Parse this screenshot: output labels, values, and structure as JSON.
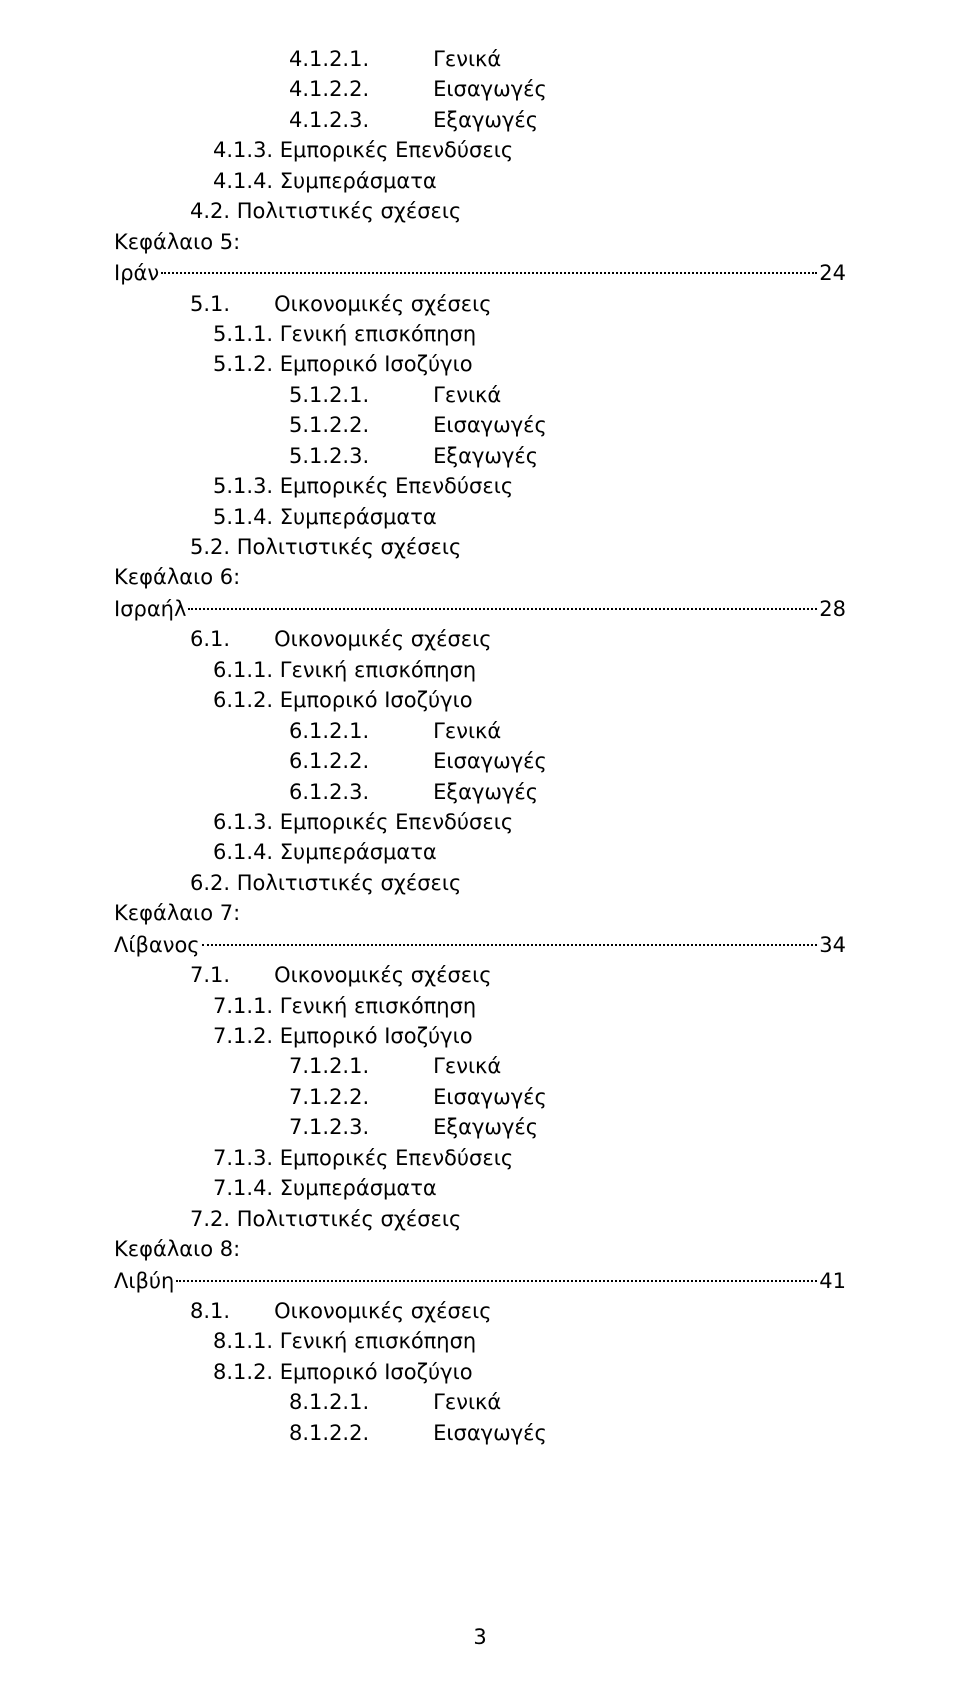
{
  "lines": [
    {
      "cls": "l3 row",
      "parts": [
        {
          "t": "4.1.2.1."
        },
        {
          "gap": "gap1"
        },
        {
          "t": "Γενικά"
        }
      ]
    },
    {
      "cls": "l3 row",
      "parts": [
        {
          "t": "4.1.2.2."
        },
        {
          "gap": "gap1"
        },
        {
          "t": "Εισαγωγές"
        }
      ]
    },
    {
      "cls": "l3 row",
      "parts": [
        {
          "t": "4.1.2.3."
        },
        {
          "gap": "gap1"
        },
        {
          "t": "Εξαγωγές"
        }
      ]
    },
    {
      "cls": "l2",
      "text": "4.1.3. Εμπορικές Επενδύσεις"
    },
    {
      "cls": "l2",
      "text": "4.1.4. Συμπεράσματα"
    },
    {
      "cls": "l1",
      "text": "4.2. Πολιτιστικές σχέσεις"
    },
    {
      "cls": "l0",
      "text": "Κεφάλαιο 5:"
    },
    {
      "cls": "l0 dotline",
      "lead": "Ιράν",
      "page": "24"
    },
    {
      "cls": "l1 row",
      "parts": [
        {
          "t": "5.1."
        },
        {
          "gap": "gap2"
        },
        {
          "t": "Οικονομικές σχέσεις"
        }
      ]
    },
    {
      "cls": "l2",
      "text": "5.1.1. Γενική επισκόπηση"
    },
    {
      "cls": "l2",
      "text": "5.1.2. Εμπορικό Ισοζύγιο"
    },
    {
      "cls": "l3 row",
      "parts": [
        {
          "t": "5.1.2.1."
        },
        {
          "gap": "gap1"
        },
        {
          "t": "Γενικά"
        }
      ]
    },
    {
      "cls": "l3 row",
      "parts": [
        {
          "t": "5.1.2.2."
        },
        {
          "gap": "gap1"
        },
        {
          "t": "Εισαγωγές"
        }
      ]
    },
    {
      "cls": "l3 row",
      "parts": [
        {
          "t": "5.1.2.3."
        },
        {
          "gap": "gap1"
        },
        {
          "t": "Εξαγωγές"
        }
      ]
    },
    {
      "cls": "l2",
      "text": "5.1.3. Εμπορικές Επενδύσεις"
    },
    {
      "cls": "l2",
      "text": "5.1.4. Συμπεράσματα"
    },
    {
      "cls": "l1",
      "text": "5.2. Πολιτιστικές σχέσεις"
    },
    {
      "cls": "l0",
      "text": "Κεφάλαιο 6:"
    },
    {
      "cls": "l0 dotline",
      "lead": "Ισραήλ",
      "page": "28"
    },
    {
      "cls": "l1 row",
      "parts": [
        {
          "t": "6.1."
        },
        {
          "gap": "gap2"
        },
        {
          "t": "Οικονομικές σχέσεις"
        }
      ]
    },
    {
      "cls": "l2",
      "text": "6.1.1. Γενική επισκόπηση"
    },
    {
      "cls": "l2",
      "text": "6.1.2. Εμπορικό Ισοζύγιο"
    },
    {
      "cls": "l3 row",
      "parts": [
        {
          "t": "6.1.2.1."
        },
        {
          "gap": "gap1"
        },
        {
          "t": "Γενικά"
        }
      ]
    },
    {
      "cls": "l3 row",
      "parts": [
        {
          "t": "6.1.2.2."
        },
        {
          "gap": "gap1"
        },
        {
          "t": "Εισαγωγές"
        }
      ]
    },
    {
      "cls": "l3 row",
      "parts": [
        {
          "t": "6.1.2.3."
        },
        {
          "gap": "gap1"
        },
        {
          "t": "Εξαγωγές"
        }
      ]
    },
    {
      "cls": "l2",
      "text": "6.1.3. Εμπορικές Επενδύσεις"
    },
    {
      "cls": "l2",
      "text": "6.1.4. Συμπεράσματα"
    },
    {
      "cls": "l1",
      "text": "6.2. Πολιτιστικές σχέσεις"
    },
    {
      "cls": "l0",
      "text": "Κεφάλαιο 7:"
    },
    {
      "cls": "l0 dotline",
      "lead": "Λίβανος",
      "page": "34"
    },
    {
      "cls": "l1 row",
      "parts": [
        {
          "t": "7.1."
        },
        {
          "gap": "gap2"
        },
        {
          "t": "Οικονομικές σχέσεις"
        }
      ]
    },
    {
      "cls": "l2",
      "text": "7.1.1. Γενική επισκόπηση"
    },
    {
      "cls": "l2",
      "text": "7.1.2. Εμπορικό Ισοζύγιο"
    },
    {
      "cls": "l3 row",
      "parts": [
        {
          "t": "7.1.2.1."
        },
        {
          "gap": "gap1"
        },
        {
          "t": "Γενικά"
        }
      ]
    },
    {
      "cls": "l3 row",
      "parts": [
        {
          "t": "7.1.2.2."
        },
        {
          "gap": "gap1"
        },
        {
          "t": "Εισαγωγές"
        }
      ]
    },
    {
      "cls": "l3 row",
      "parts": [
        {
          "t": "7.1.2.3."
        },
        {
          "gap": "gap1"
        },
        {
          "t": "Εξαγωγές"
        }
      ]
    },
    {
      "cls": "l2",
      "text": "7.1.3. Εμπορικές Επενδύσεις"
    },
    {
      "cls": "l2",
      "text": "7.1.4. Συμπεράσματα"
    },
    {
      "cls": "l1",
      "text": "7.2. Πολιτιστικές σχέσεις"
    },
    {
      "cls": "l0",
      "text": "Κεφάλαιο 8:"
    },
    {
      "cls": "l0 dotline",
      "lead": "Λιβύη",
      "page": "41"
    },
    {
      "cls": "l1 row",
      "parts": [
        {
          "t": "8.1."
        },
        {
          "gap": "gap2"
        },
        {
          "t": "Οικονομικές σχέσεις"
        }
      ]
    },
    {
      "cls": "l2",
      "text": "8.1.1. Γενική επισκόπηση"
    },
    {
      "cls": "l2",
      "text": "8.1.2. Εμπορικό Ισοζύγιο"
    },
    {
      "cls": "l3 row",
      "parts": [
        {
          "t": "8.1.2.1."
        },
        {
          "gap": "gap1"
        },
        {
          "t": "Γενικά"
        }
      ]
    },
    {
      "cls": "l3 row",
      "parts": [
        {
          "t": "8.1.2.2."
        },
        {
          "gap": "gap1"
        },
        {
          "t": "Εισαγωγές"
        }
      ]
    }
  ],
  "footer": "3"
}
